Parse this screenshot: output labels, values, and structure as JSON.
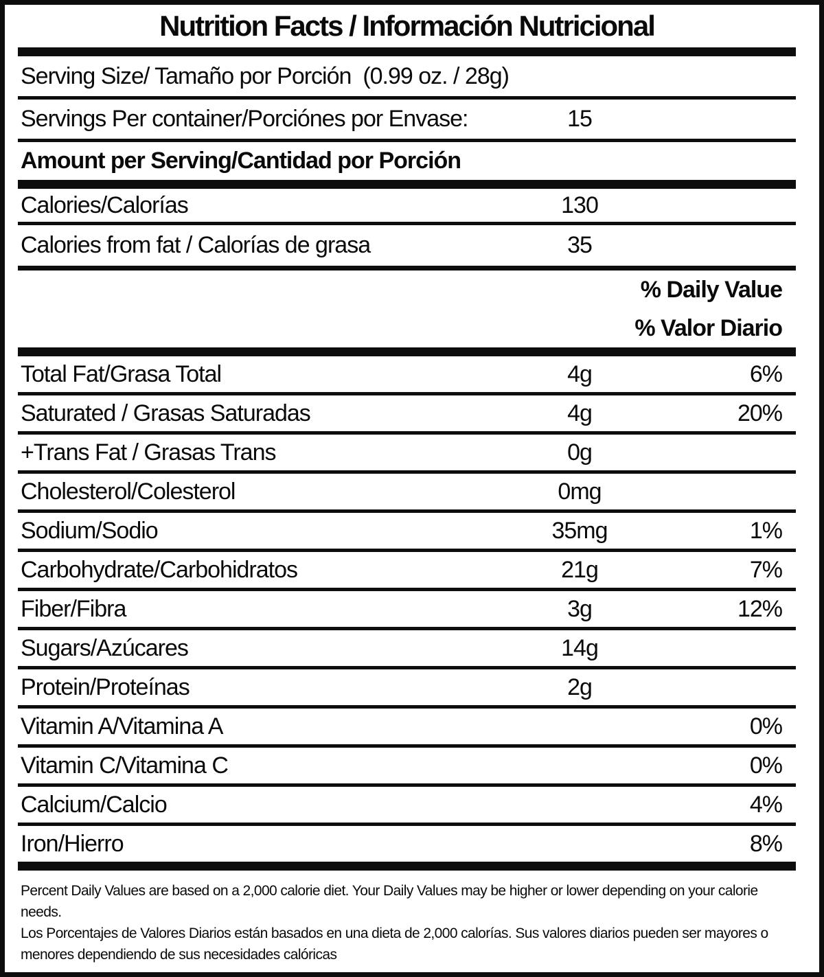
{
  "label": {
    "title": "Nutrition Facts / Información Nutricional",
    "serving_size_text": "Serving Size/ Tamaño por Porción  (0.99 oz. / 28g)",
    "servings_per_container": {
      "label": "Servings Per container/Porciónes por Envase:",
      "value": "15"
    },
    "amount_per_serving_heading": "Amount per Serving/Cantidad por Porción",
    "calories": {
      "label": "Calories/Calorías",
      "value": "130"
    },
    "calories_from_fat": {
      "label": "Calories from fat / Calorías de grasa",
      "value": "35"
    },
    "daily_value_header": [
      "% Daily Value",
      "% Valor Diario"
    ],
    "nutrients": [
      {
        "label": "Total Fat/Grasa Total",
        "amount": "4g",
        "dv": "6%"
      },
      {
        "label": "Saturated / Grasas Saturadas",
        "amount": "4g",
        "dv": "20%"
      },
      {
        "label": "+Trans Fat / Grasas Trans",
        "amount": "0g",
        "dv": ""
      },
      {
        "label": "Cholesterol/Colesterol",
        "amount": "0mg",
        "dv": ""
      },
      {
        "label": "Sodium/Sodio",
        "amount": "35mg",
        "dv": "1%"
      },
      {
        "label": "Carbohydrate/Carbohidratos",
        "amount": "21g",
        "dv": "7%"
      },
      {
        "label": "Fiber/Fibra",
        "amount": "3g",
        "dv": "12%"
      },
      {
        "label": "Sugars/Azúcares",
        "amount": "14g",
        "dv": ""
      },
      {
        "label": "Protein/Proteínas",
        "amount": "2g",
        "dv": ""
      },
      {
        "label": "Vitamin A/Vitamina A",
        "amount": "",
        "dv": "0%"
      },
      {
        "label": "Vitamin C/Vitamina C",
        "amount": "",
        "dv": "0%"
      },
      {
        "label": "Calcium/Calcio",
        "amount": "",
        "dv": "4%"
      },
      {
        "label": "Iron/Hierro",
        "amount": "",
        "dv": "8%"
      }
    ],
    "footnotes": [
      "Percent Daily Values are based on a 2,000 calorie diet. Your Daily Values may be higher or lower depending on your calorie needs.",
      "Los Porcentajes de Valores Diarios están basados en una dieta de 2,000 calorías. Sus valores diarios pueden ser mayores o menores dependiendo de sus necesidades calóricas"
    ]
  },
  "colors": {
    "text": "#0a0a0a",
    "rule": "#0d0d0d",
    "background": "#ffffff"
  }
}
